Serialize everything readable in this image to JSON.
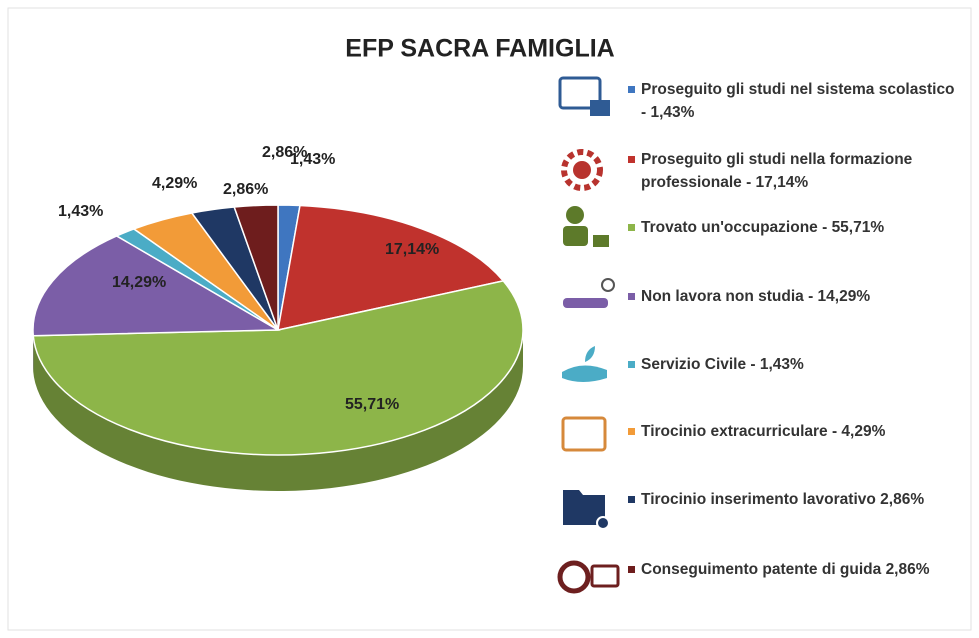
{
  "chart_data": {
    "type": "pie",
    "title": "EFP SACRA FAMIGLIA",
    "categories": [
      "Proseguito gli studi nel sistema scolastico - 1,43%",
      "Proseguito gli studi nella formazione professionale - 17,14%",
      "Trovato un'occupazione - 55,71%",
      "Non lavora non studia - 14,29%",
      "Servizio Civile - 1,43%",
      "Tirocinio extracurriculare - 4,29%",
      "Tirocinio inserimento lavorativo 2,86%",
      "Conseguimento patente di guida 2,86%"
    ],
    "values": [
      1.43,
      17.14,
      55.71,
      14.29,
      1.43,
      4.29,
      2.86,
      2.86
    ],
    "value_labels": [
      "1,43%",
      "17,14%",
      "55,71%",
      "14,29%",
      "1,43%",
      "4,29%",
      "2,86%",
      "2,86%"
    ],
    "colors": [
      "#3f76c0",
      "#c0322d",
      "#8db549",
      "#7b5ea7",
      "#4bacc6",
      "#f29b38",
      "#1f3864",
      "#6e1d1d"
    ]
  }
}
